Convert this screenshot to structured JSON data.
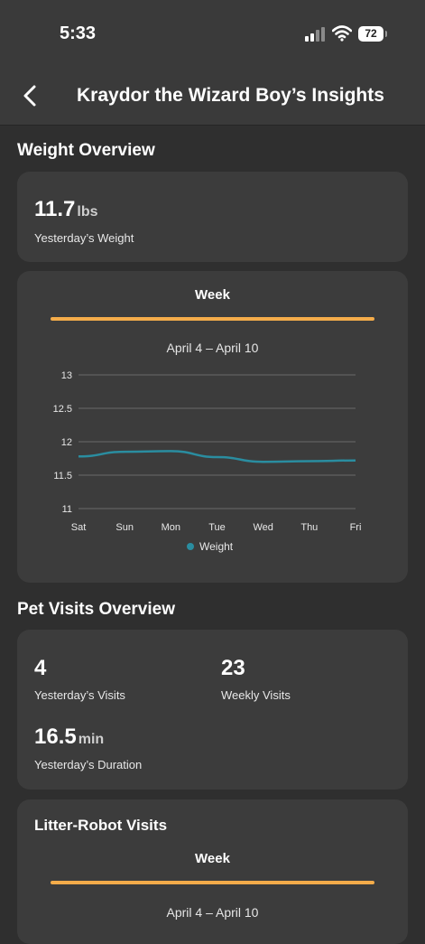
{
  "status_bar": {
    "time": "5:33",
    "battery": "72"
  },
  "nav": {
    "title": "Kraydor the Wizard Boy’s Insights"
  },
  "weight_overview": {
    "title": "Weight Overview",
    "value": "11.7",
    "unit": "lbs",
    "label": "Yesterday’s Weight"
  },
  "weight_chart_card": {
    "tab": "Week",
    "range": "April 4 – April 10"
  },
  "chart_data": {
    "type": "line",
    "categories": [
      "Sat",
      "Sun",
      "Mon",
      "Tue",
      "Wed",
      "Thu",
      "Fri"
    ],
    "series": [
      {
        "name": "Weight",
        "values": [
          11.78,
          11.85,
          11.86,
          11.77,
          11.7,
          11.71,
          11.72
        ]
      }
    ],
    "ylim": [
      11,
      13
    ],
    "yticks": [
      "11",
      "11.5",
      "12",
      "12.5",
      "13"
    ],
    "legend": "bottom",
    "grid": true,
    "color": "#2a8da0"
  },
  "pet_visits": {
    "title": "Pet Visits Overview",
    "yesterday_visits": "4",
    "yesterday_visits_label": "Yesterday’s Visits",
    "weekly_visits": "23",
    "weekly_visits_label": "Weekly Visits",
    "duration": "16.5",
    "duration_unit": "min",
    "duration_label": "Yesterday’s Duration"
  },
  "litter_robot": {
    "title": "Litter-Robot Visits",
    "tab": "Week",
    "range": "April 4 – April 10"
  },
  "colors": {
    "accent": "#f4ac4a",
    "series": "#2a8da0",
    "card": "#3c3c3c",
    "background": "#2f2f2f"
  }
}
